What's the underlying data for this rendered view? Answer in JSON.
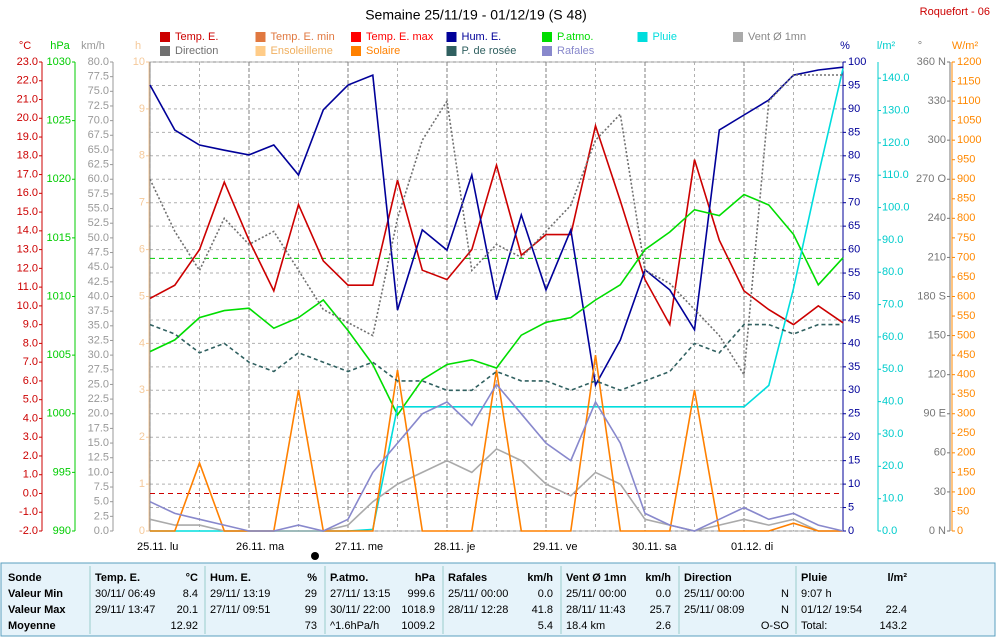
{
  "title": "Semaine 25/11/19 - 01/12/19 (S 48)",
  "station": "Roquefort - 06",
  "chart_data": {
    "type": "line",
    "x": [
      0,
      6,
      12,
      18,
      24,
      30,
      36,
      42,
      48,
      54,
      60,
      66,
      72,
      78,
      84,
      90,
      96,
      102,
      108,
      114,
      120,
      126,
      132,
      138,
      144,
      150,
      156,
      162,
      168
    ],
    "xlim": [
      0,
      168
    ],
    "xticks": [
      {
        "value": 0,
        "label": "25.11. lu"
      },
      {
        "value": 24,
        "label": "26.11. ma"
      },
      {
        "value": 48,
        "label": "27.11. me"
      },
      {
        "value": 72,
        "label": "28.11. je"
      },
      {
        "value": 96,
        "label": "29.11. ve"
      },
      {
        "value": 120,
        "label": "30.11. sa"
      },
      {
        "value": 144,
        "label": "01.12. di"
      }
    ],
    "xminor": [
      12,
      36,
      60,
      84,
      108,
      132,
      156
    ],
    "grid": true,
    "grid_axis": "%",
    "axes": [
      {
        "label": "°C",
        "color": "#cc0000",
        "lim": [
          -2,
          23
        ],
        "ticks": [
          {
            "value": -2,
            "label": "-2.0"
          },
          {
            "value": -1,
            "label": "-1.0"
          },
          {
            "value": 0,
            "label": "0.0"
          },
          {
            "value": 1,
            "label": "1.0"
          },
          {
            "value": 2,
            "label": "2.0"
          },
          {
            "value": 3,
            "label": "3.0"
          },
          {
            "value": 4,
            "label": "4.0"
          },
          {
            "value": 5,
            "label": "5.0"
          },
          {
            "value": 6,
            "label": "6.0"
          },
          {
            "value": 7,
            "label": "7.0"
          },
          {
            "value": 8,
            "label": "8.0"
          },
          {
            "value": 9,
            "label": "9.0"
          },
          {
            "value": 10,
            "label": "10.0"
          },
          {
            "value": 11,
            "label": "11.0"
          },
          {
            "value": 12,
            "label": "12.0"
          },
          {
            "value": 13,
            "label": "13.0"
          },
          {
            "value": 14,
            "label": "14.0"
          },
          {
            "value": 15,
            "label": "15.0"
          },
          {
            "value": 16,
            "label": "16.0"
          },
          {
            "value": 17,
            "label": "17.0"
          },
          {
            "value": 18,
            "label": "18.0"
          },
          {
            "value": 19,
            "label": "19.0"
          },
          {
            "value": 20,
            "label": "20.0"
          },
          {
            "value": 21,
            "label": "21.0"
          },
          {
            "value": 22,
            "label": "22.0"
          },
          {
            "value": 23,
            "label": "23.0"
          }
        ]
      },
      {
        "label": "hPa",
        "color": "#00cc00",
        "lim": [
          990,
          1030
        ],
        "ticks": [
          990,
          995,
          1000,
          1005,
          1010,
          1015,
          1020,
          1025,
          1030
        ]
      },
      {
        "label": "km/h",
        "color": "#999999",
        "lim": [
          0,
          80
        ],
        "ticks": [
          {
            "value": 0,
            "label": "0.0"
          },
          {
            "value": 2.5,
            "label": "2.5"
          },
          {
            "value": 5,
            "label": "5.0"
          },
          {
            "value": 7.5,
            "label": "7.5"
          },
          {
            "value": 10,
            "label": "10.0"
          },
          {
            "value": 12.5,
            "label": "12.5"
          },
          {
            "value": 15,
            "label": "15.0"
          },
          {
            "value": 17.5,
            "label": "17.5"
          },
          {
            "value": 20,
            "label": "20.0"
          },
          {
            "value": 22.5,
            "label": "22.5"
          },
          {
            "value": 25,
            "label": "25.0"
          },
          {
            "value": 27.5,
            "label": "27.5"
          },
          {
            "value": 30,
            "label": "30.0"
          },
          {
            "value": 32.5,
            "label": "32.5"
          },
          {
            "value": 35,
            "label": "35.0"
          },
          {
            "value": 37.5,
            "label": "37.5"
          },
          {
            "value": 40,
            "label": "40.0"
          },
          {
            "value": 42.5,
            "label": "42.5"
          },
          {
            "value": 45,
            "label": "45.0"
          },
          {
            "value": 47.5,
            "label": "47.5"
          },
          {
            "value": 50,
            "label": "50.0"
          },
          {
            "value": 52.5,
            "label": "52.5"
          },
          {
            "value": 55,
            "label": "55.0"
          },
          {
            "value": 57.5,
            "label": "57.5"
          },
          {
            "value": 60,
            "label": "60.0"
          },
          {
            "value": 62.5,
            "label": "62.5"
          },
          {
            "value": 65,
            "label": "65.0"
          },
          {
            "value": 67.5,
            "label": "67.5"
          },
          {
            "value": 70,
            "label": "70.0"
          },
          {
            "value": 72.5,
            "label": "72.5"
          },
          {
            "value": 75,
            "label": "75.0"
          },
          {
            "value": 77.5,
            "label": "77.5"
          },
          {
            "value": 80,
            "label": "80.0"
          }
        ]
      },
      {
        "label": "h",
        "color": "#f5c99a",
        "lim": [
          0,
          10
        ],
        "ticks": [
          0,
          1,
          2,
          3,
          4,
          5,
          6,
          7,
          8,
          9,
          10
        ]
      },
      {
        "label": "%",
        "color": "#000099",
        "lim": [
          0,
          100
        ],
        "ticks": [
          0,
          5,
          10,
          15,
          20,
          25,
          30,
          35,
          40,
          45,
          50,
          55,
          60,
          65,
          70,
          75,
          80,
          85,
          90,
          95,
          100
        ]
      },
      {
        "label": "l/m²",
        "color": "#00cccc",
        "lim": [
          0,
          145
        ],
        "ticks": [
          {
            "value": 0,
            "label": "0.0"
          },
          {
            "value": 10,
            "label": "10.0"
          },
          {
            "value": 20,
            "label": "20.0"
          },
          {
            "value": 30,
            "label": "30.0"
          },
          {
            "value": 40,
            "label": "40.0"
          },
          {
            "value": 50,
            "label": "50.0"
          },
          {
            "value": 60,
            "label": "60.0"
          },
          {
            "value": 70,
            "label": "70.0"
          },
          {
            "value": 80,
            "label": "80.0"
          },
          {
            "value": 90,
            "label": "90.0"
          },
          {
            "value": 100,
            "label": "100.0"
          },
          {
            "value": 110,
            "label": "110.0"
          },
          {
            "value": 120,
            "label": "120.0"
          },
          {
            "value": 130,
            "label": "130.0"
          },
          {
            "value": 140,
            "label": "140.0"
          }
        ]
      },
      {
        "label": "°",
        "color": "#777777",
        "lim": [
          0,
          360
        ],
        "ticks": [
          {
            "value": 0,
            "label": "0 N"
          },
          30,
          60,
          {
            "value": 90,
            "label": "90 E"
          },
          120,
          150,
          {
            "value": 180,
            "label": "180 S"
          },
          210,
          240,
          {
            "value": 270,
            "label": "270 O"
          },
          300,
          330,
          {
            "value": 360,
            "label": "360 N"
          }
        ]
      },
      {
        "label": "W/m²",
        "color": "#ff8800",
        "lim": [
          0,
          1200
        ],
        "ticks": [
          0,
          50,
          100,
          150,
          200,
          250,
          300,
          350,
          400,
          450,
          500,
          550,
          600,
          650,
          700,
          750,
          800,
          850,
          900,
          950,
          1000,
          1050,
          1100,
          1150,
          1200
        ]
      }
    ],
    "reference_lines": [
      {
        "axis": "°C",
        "value": 0,
        "color": "#cc0000"
      },
      {
        "axis": "hPa",
        "value": 1013.25,
        "color": "#00cc00"
      }
    ],
    "series": [
      {
        "name": "Temp. E.",
        "color": "#cc0000",
        "axis": "°C",
        "values": [
          10.4,
          11.1,
          13.0,
          16.6,
          13.5,
          10.8,
          15.4,
          12.4,
          11.1,
          11.1,
          16.7,
          11.9,
          11.4,
          13.0,
          17.5,
          12.7,
          13.8,
          13.8,
          19.6,
          15.6,
          11.4,
          9.0,
          17.8,
          13.5,
          10.8,
          9.8,
          9.0,
          10.0,
          9.1
        ]
      },
      {
        "name": "Temp. E. min",
        "color": "#e07840"
      },
      {
        "name": "Temp. E. max",
        "color": "#ff0000"
      },
      {
        "name": "Hum. E.",
        "color": "#000099",
        "axis": "%",
        "values": [
          95.1,
          85.5,
          82.3,
          81.2,
          80.2,
          82.3,
          75.9,
          89.8,
          95.1,
          97.2,
          47.1,
          64.2,
          59.9,
          75.9,
          49.3,
          67.4,
          51.4,
          64.2,
          31.1,
          40.7,
          55.7,
          51.4,
          42.9,
          85.5,
          88.7,
          91.9,
          97.2,
          98.3,
          98.9
        ]
      },
      {
        "name": "P.atmo.",
        "color": "#00dd00",
        "axis": "hPa",
        "values": [
          1005.3,
          1006.3,
          1008.2,
          1008.8,
          1009.0,
          1007.3,
          1008.2,
          1009.7,
          1007.1,
          1004.2,
          999.9,
          1002.9,
          1004.2,
          1004.6,
          1003.9,
          1006.7,
          1007.8,
          1008.2,
          1009.7,
          1011.0,
          1014.0,
          1015.5,
          1017.4,
          1016.9,
          1018.7,
          1017.8,
          1015.3,
          1011.0,
          1013.3
        ]
      },
      {
        "name": "Pluie",
        "color": "#00dddd",
        "axis": "l/m²",
        "values": [
          0,
          0,
          0,
          0,
          0,
          0,
          0,
          0,
          0,
          0.5,
          38.4,
          38.4,
          38.4,
          38.4,
          38.4,
          38.4,
          38.4,
          38.4,
          38.4,
          38.4,
          38.4,
          38.4,
          38.4,
          38.4,
          38.4,
          45,
          75,
          110,
          143
        ]
      },
      {
        "name": "Vent Ø 1mn",
        "color": "#aaaaaa",
        "axis": "km/h",
        "values": [
          2,
          1,
          1,
          0,
          0,
          0,
          0,
          0,
          1,
          5,
          8,
          10,
          12,
          10,
          14,
          12,
          8,
          6,
          10,
          8,
          2,
          1,
          0,
          1,
          2,
          1,
          2,
          0,
          0
        ]
      },
      {
        "name": "Direction",
        "color": "#707070",
        "axis": "°",
        "dash": "2 2",
        "values": [
          270,
          230,
          200,
          240,
          220,
          230,
          200,
          170,
          160,
          150,
          240,
          300,
          330,
          200,
          220,
          210,
          230,
          250,
          300,
          320,
          200,
          190,
          170,
          150,
          120,
          330,
          350,
          350,
          350
        ]
      },
      {
        "name": "Ensoleilleme",
        "color": "#ffcc88"
      },
      {
        "name": "Solaire",
        "color": "#ff8000",
        "axis": "W/m²",
        "values": [
          0,
          0,
          174,
          0,
          0,
          0,
          361,
          0,
          0,
          0,
          412,
          0,
          0,
          0,
          412,
          0,
          0,
          0,
          450,
          0,
          0,
          0,
          361,
          0,
          0,
          0,
          20,
          0,
          0
        ]
      },
      {
        "name": "P. de rosée",
        "color": "#306060",
        "axis": "°C",
        "dash": "4 3",
        "values": [
          9.0,
          8.5,
          7.5,
          8.0,
          7.0,
          6.5,
          7.5,
          7.0,
          6.5,
          7.0,
          6.0,
          6.0,
          5.5,
          5.5,
          6.5,
          6.0,
          6.0,
          5.5,
          6.0,
          5.5,
          6.0,
          6.5,
          8.0,
          7.5,
          9.0,
          9.0,
          8.5,
          9.0,
          9.0
        ]
      },
      {
        "name": "Rafales",
        "color": "#8888cc",
        "axis": "km/h",
        "values": [
          5,
          3,
          2,
          1,
          0,
          0,
          1,
          0,
          2,
          10,
          15,
          20,
          22,
          18,
          25,
          20,
          15,
          12,
          22,
          15,
          3,
          1,
          0,
          2,
          4,
          2,
          3,
          1,
          0
        ]
      }
    ]
  },
  "summary": {
    "groups": [
      {
        "header": "Sonde",
        "rows": [
          {
            "l": "Valeur Min"
          },
          {
            "l": "Valeur Max"
          },
          {
            "l": "Moyenne"
          }
        ]
      },
      {
        "header": "Temp. E.",
        "unit": "°C",
        "rows": [
          {
            "l": "30/11/ 06:49",
            "r": "8.4"
          },
          {
            "l": "29/11/ 13:47",
            "r": "20.1"
          },
          {
            "r": "12.92"
          }
        ]
      },
      {
        "header": "Hum. E.",
        "unit": "%",
        "rows": [
          {
            "l": "29/11/ 13:19",
            "r": "29"
          },
          {
            "l": "27/11/ 09:51",
            "r": "99"
          },
          {
            "r": "73"
          }
        ]
      },
      {
        "header": "P.atmo.",
        "unit": "hPa",
        "rows": [
          {
            "l": "27/11/ 13:15",
            "r": "999.6"
          },
          {
            "l": "30/11/ 22:00",
            "r": "1018.9"
          },
          {
            "l": "^1.6hPa/h",
            "r": "1009.2"
          }
        ]
      },
      {
        "header": "Rafales",
        "unit": "km/h",
        "rows": [
          {
            "l": "25/11/ 00:00",
            "r": "0.0"
          },
          {
            "l": "28/11/ 12:28",
            "r": "41.8"
          },
          {
            "r": "5.4"
          }
        ]
      },
      {
        "header": "Vent Ø 1mn",
        "unit": "km/h",
        "rows": [
          {
            "l": "25/11/ 00:00",
            "r": "0.0"
          },
          {
            "l": "28/11/ 11:43",
            "r": "25.7"
          },
          {
            "l": "18.4 km",
            "r": "2.6"
          }
        ]
      },
      {
        "header": "Direction",
        "rows": [
          {
            "l": "25/11/ 00:00",
            "r": "N"
          },
          {
            "l": "25/11/ 08:09",
            "r": "N"
          },
          {
            "r": "O-SO"
          }
        ]
      },
      {
        "header": "Pluie",
        "unit": "l/m²",
        "rows": [
          {
            "l": "9:07 h"
          },
          {
            "l": "01/12/ 19:54",
            "r": "22.4"
          },
          {
            "l": "Total:",
            "r": "143.2"
          }
        ]
      }
    ]
  }
}
